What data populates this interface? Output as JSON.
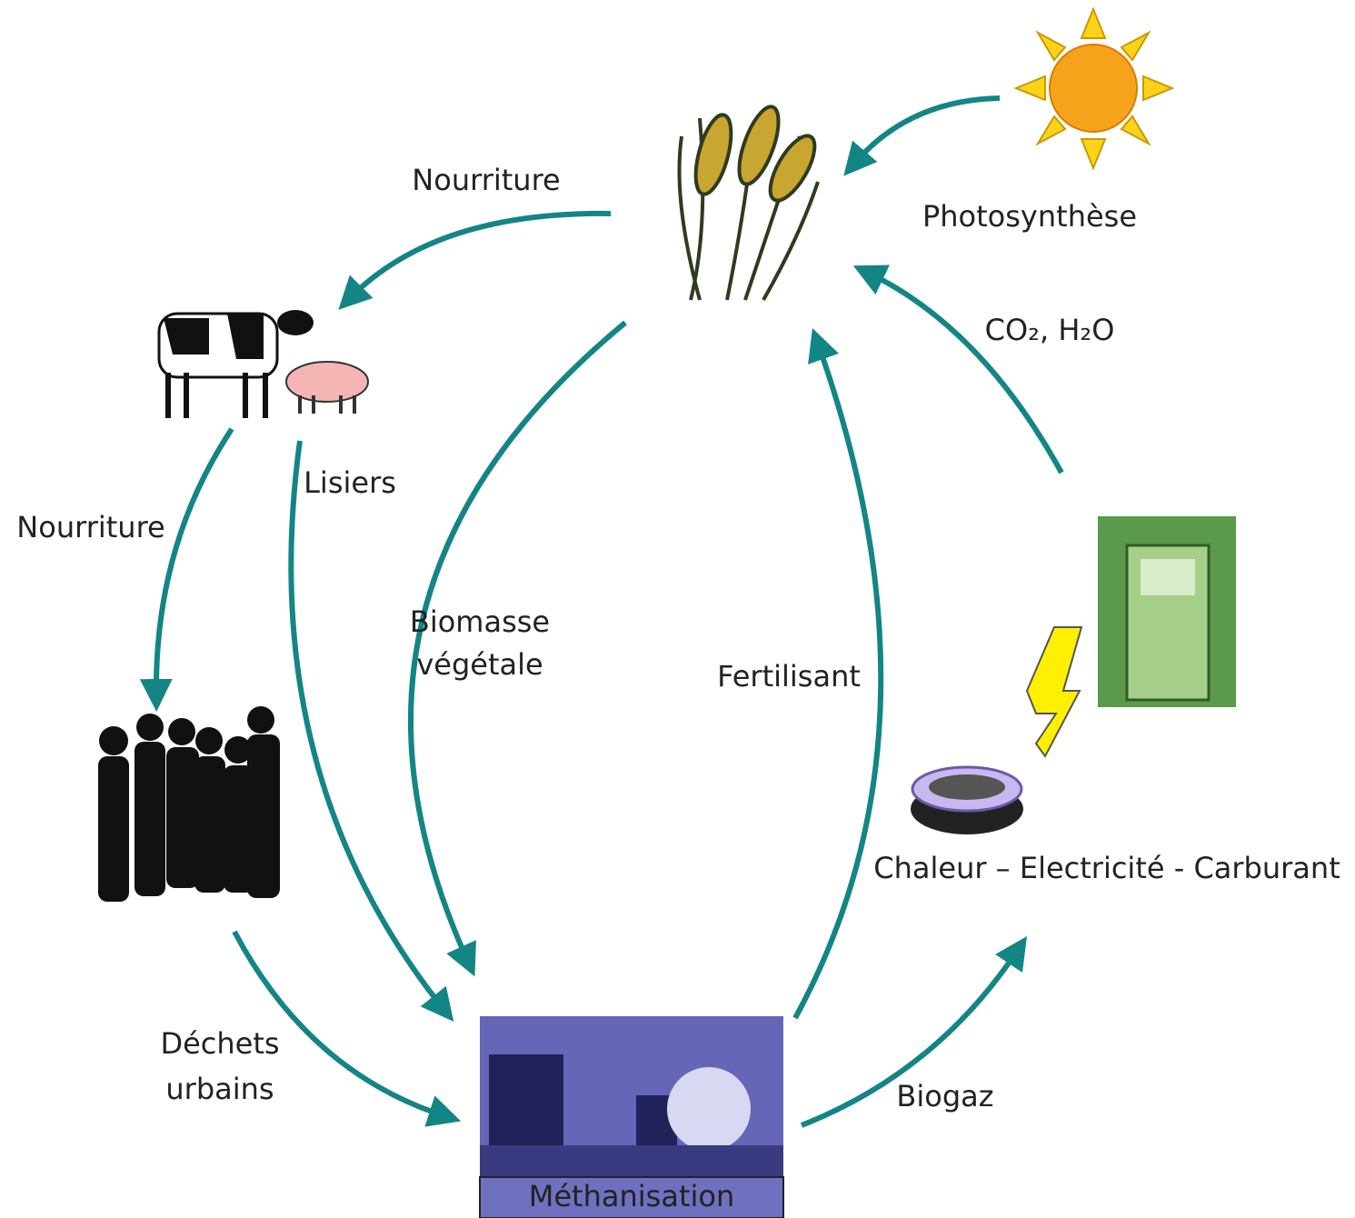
{
  "title_nodes": {
    "methanisation": "Méthanisation",
    "energy": "Chaleur – Electricité - Carburant"
  },
  "edges": [
    {
      "label": "Nourriture"
    },
    {
      "label": "Photosynthèse"
    },
    {
      "label": "CO₂, H₂O"
    },
    {
      "label": "Nourriture"
    },
    {
      "label": "Lisiers"
    },
    {
      "lines": [
        "Biomasse",
        "végétale"
      ]
    },
    {
      "label": "Fertilisant"
    },
    {
      "lines": [
        "Déchets",
        "urbains"
      ]
    },
    {
      "label": "Biogaz"
    }
  ]
}
